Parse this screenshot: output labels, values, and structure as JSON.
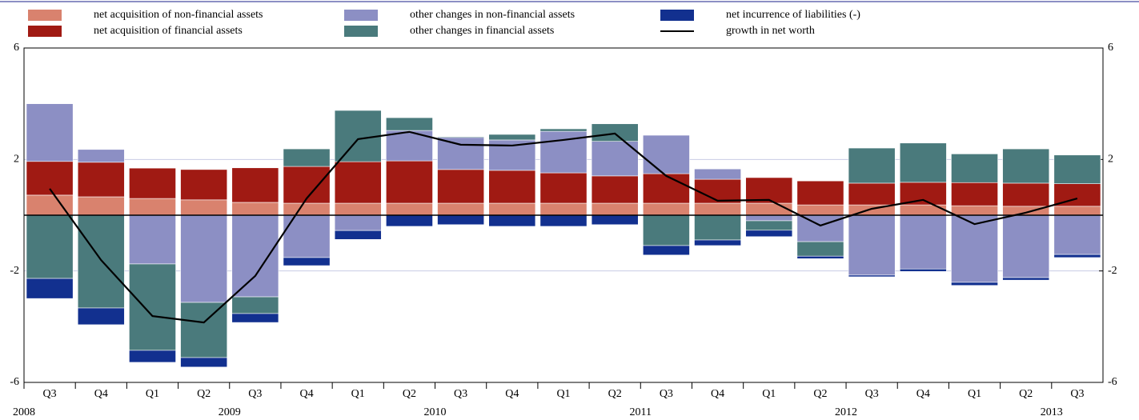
{
  "chart_data": {
    "type": "bar",
    "stacked": true,
    "categories": [
      "Q3",
      "Q4",
      "Q1",
      "Q2",
      "Q3",
      "Q4",
      "Q1",
      "Q2",
      "Q3",
      "Q4",
      "Q1",
      "Q2",
      "Q3",
      "Q4",
      "Q1",
      "Q2",
      "Q3",
      "Q4",
      "Q1",
      "Q2",
      "Q3"
    ],
    "years": [
      "2008",
      null,
      null,
      null,
      "2009",
      null,
      null,
      null,
      "2010",
      null,
      null,
      null,
      "2011",
      null,
      null,
      null,
      "2012",
      null,
      null,
      null,
      "2013"
    ],
    "series": [
      {
        "name": "net acquisition of non-financial assets",
        "color": "#d9826e",
        "values": [
          0.72,
          0.66,
          0.6,
          0.55,
          0.46,
          0.43,
          0.43,
          0.43,
          0.43,
          0.43,
          0.43,
          0.43,
          0.43,
          0.43,
          0.43,
          0.37,
          0.37,
          0.37,
          0.34,
          0.32,
          0.32
        ]
      },
      {
        "name": "net acquisition of financial assets",
        "color": "#a01a13",
        "values": [
          1.21,
          1.24,
          1.09,
          1.09,
          1.24,
          1.32,
          1.49,
          1.52,
          1.21,
          1.18,
          1.09,
          0.98,
          1.06,
          0.86,
          0.92,
          0.86,
          0.78,
          0.81,
          0.83,
          0.83,
          0.81
        ]
      },
      {
        "name": "other changes in non-financial assets",
        "color": "#8c8fc4",
        "values": [
          2.07,
          0.46,
          -1.75,
          -3.13,
          -2.93,
          -1.52,
          -0.55,
          1.09,
          1.15,
          1.09,
          1.49,
          1.24,
          1.38,
          0.37,
          -0.2,
          -0.95,
          -2.15,
          -1.93,
          -2.41,
          -2.24,
          -1.41
        ]
      },
      {
        "name": "other changes in financial assets",
        "color": "#4a7a7c",
        "values": [
          -2.27,
          -3.33,
          -3.1,
          -1.98,
          -0.6,
          0.63,
          1.84,
          0.46,
          0.03,
          0.2,
          0.09,
          0.63,
          -1.09,
          -0.89,
          -0.34,
          -0.52,
          1.26,
          1.41,
          1.03,
          1.23,
          1.03
        ]
      },
      {
        "name": "net incurrence of liabilities (-)",
        "color": "#12308f",
        "values": [
          -0.72,
          -0.6,
          -0.43,
          -0.34,
          -0.32,
          -0.29,
          -0.32,
          -0.4,
          -0.34,
          -0.4,
          -0.4,
          -0.34,
          -0.34,
          -0.2,
          -0.23,
          -0.09,
          -0.06,
          -0.09,
          -0.11,
          -0.09,
          -0.11
        ]
      },
      {
        "name": "growth in net worth",
        "type": "line",
        "color": "#000000",
        "values": [
          0.95,
          -1.61,
          -3.62,
          -3.85,
          -2.18,
          0.6,
          2.73,
          2.99,
          2.53,
          2.5,
          2.7,
          2.93,
          1.41,
          0.52,
          0.55,
          -0.37,
          0.23,
          0.55,
          -0.32,
          0.09,
          0.6
        ]
      }
    ],
    "ylim": [
      -6,
      6
    ],
    "yticks": [
      -6,
      -2,
      2,
      6
    ],
    "y2lim": [
      -6,
      6
    ],
    "y2ticks": [
      -6,
      -2,
      2,
      6
    ],
    "grid": true
  }
}
